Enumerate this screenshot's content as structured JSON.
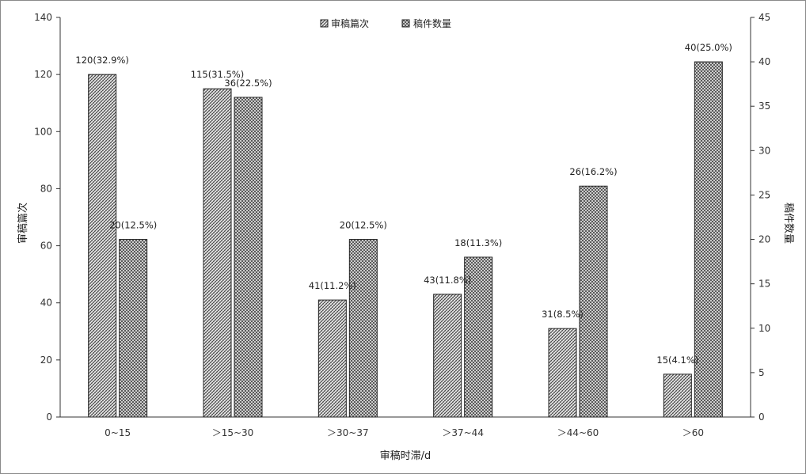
{
  "chart_data": {
    "type": "bar",
    "xlabel": "审稿时滞/d",
    "ylabel_left": "审稿篇次",
    "ylabel_right": "稿件数量",
    "ylim_left": [
      0,
      140
    ],
    "ylim_right": [
      0,
      45
    ],
    "yticks_left": [
      0,
      20,
      40,
      60,
      80,
      100,
      120,
      140
    ],
    "yticks_right": [
      0,
      5,
      10,
      15,
      20,
      25,
      30,
      35,
      40,
      45
    ],
    "categories": [
      "0~15",
      "＞15~30",
      "＞30~37",
      "＞37~44",
      "＞44~60",
      "＞60"
    ],
    "series": [
      {
        "name": "审稿篇次",
        "axis": "left",
        "values": [
          120,
          115,
          41,
          43,
          31,
          15
        ],
        "labels": [
          "120(32.9%)",
          "115(31.5%)",
          "41(11.2%)",
          "43(11.8%)",
          "31(8.5%)",
          "15(4.1%)"
        ]
      },
      {
        "name": "稿件数量",
        "axis": "right",
        "values": [
          20,
          36,
          20,
          18,
          26,
          40
        ],
        "labels": [
          "20(12.5%)",
          "36(22.5%)",
          "20(12.5%)",
          "18(11.3%)",
          "26(16.2%)",
          "40(25.0%)"
        ]
      }
    ],
    "legend_position": "top-center",
    "grid": false
  }
}
